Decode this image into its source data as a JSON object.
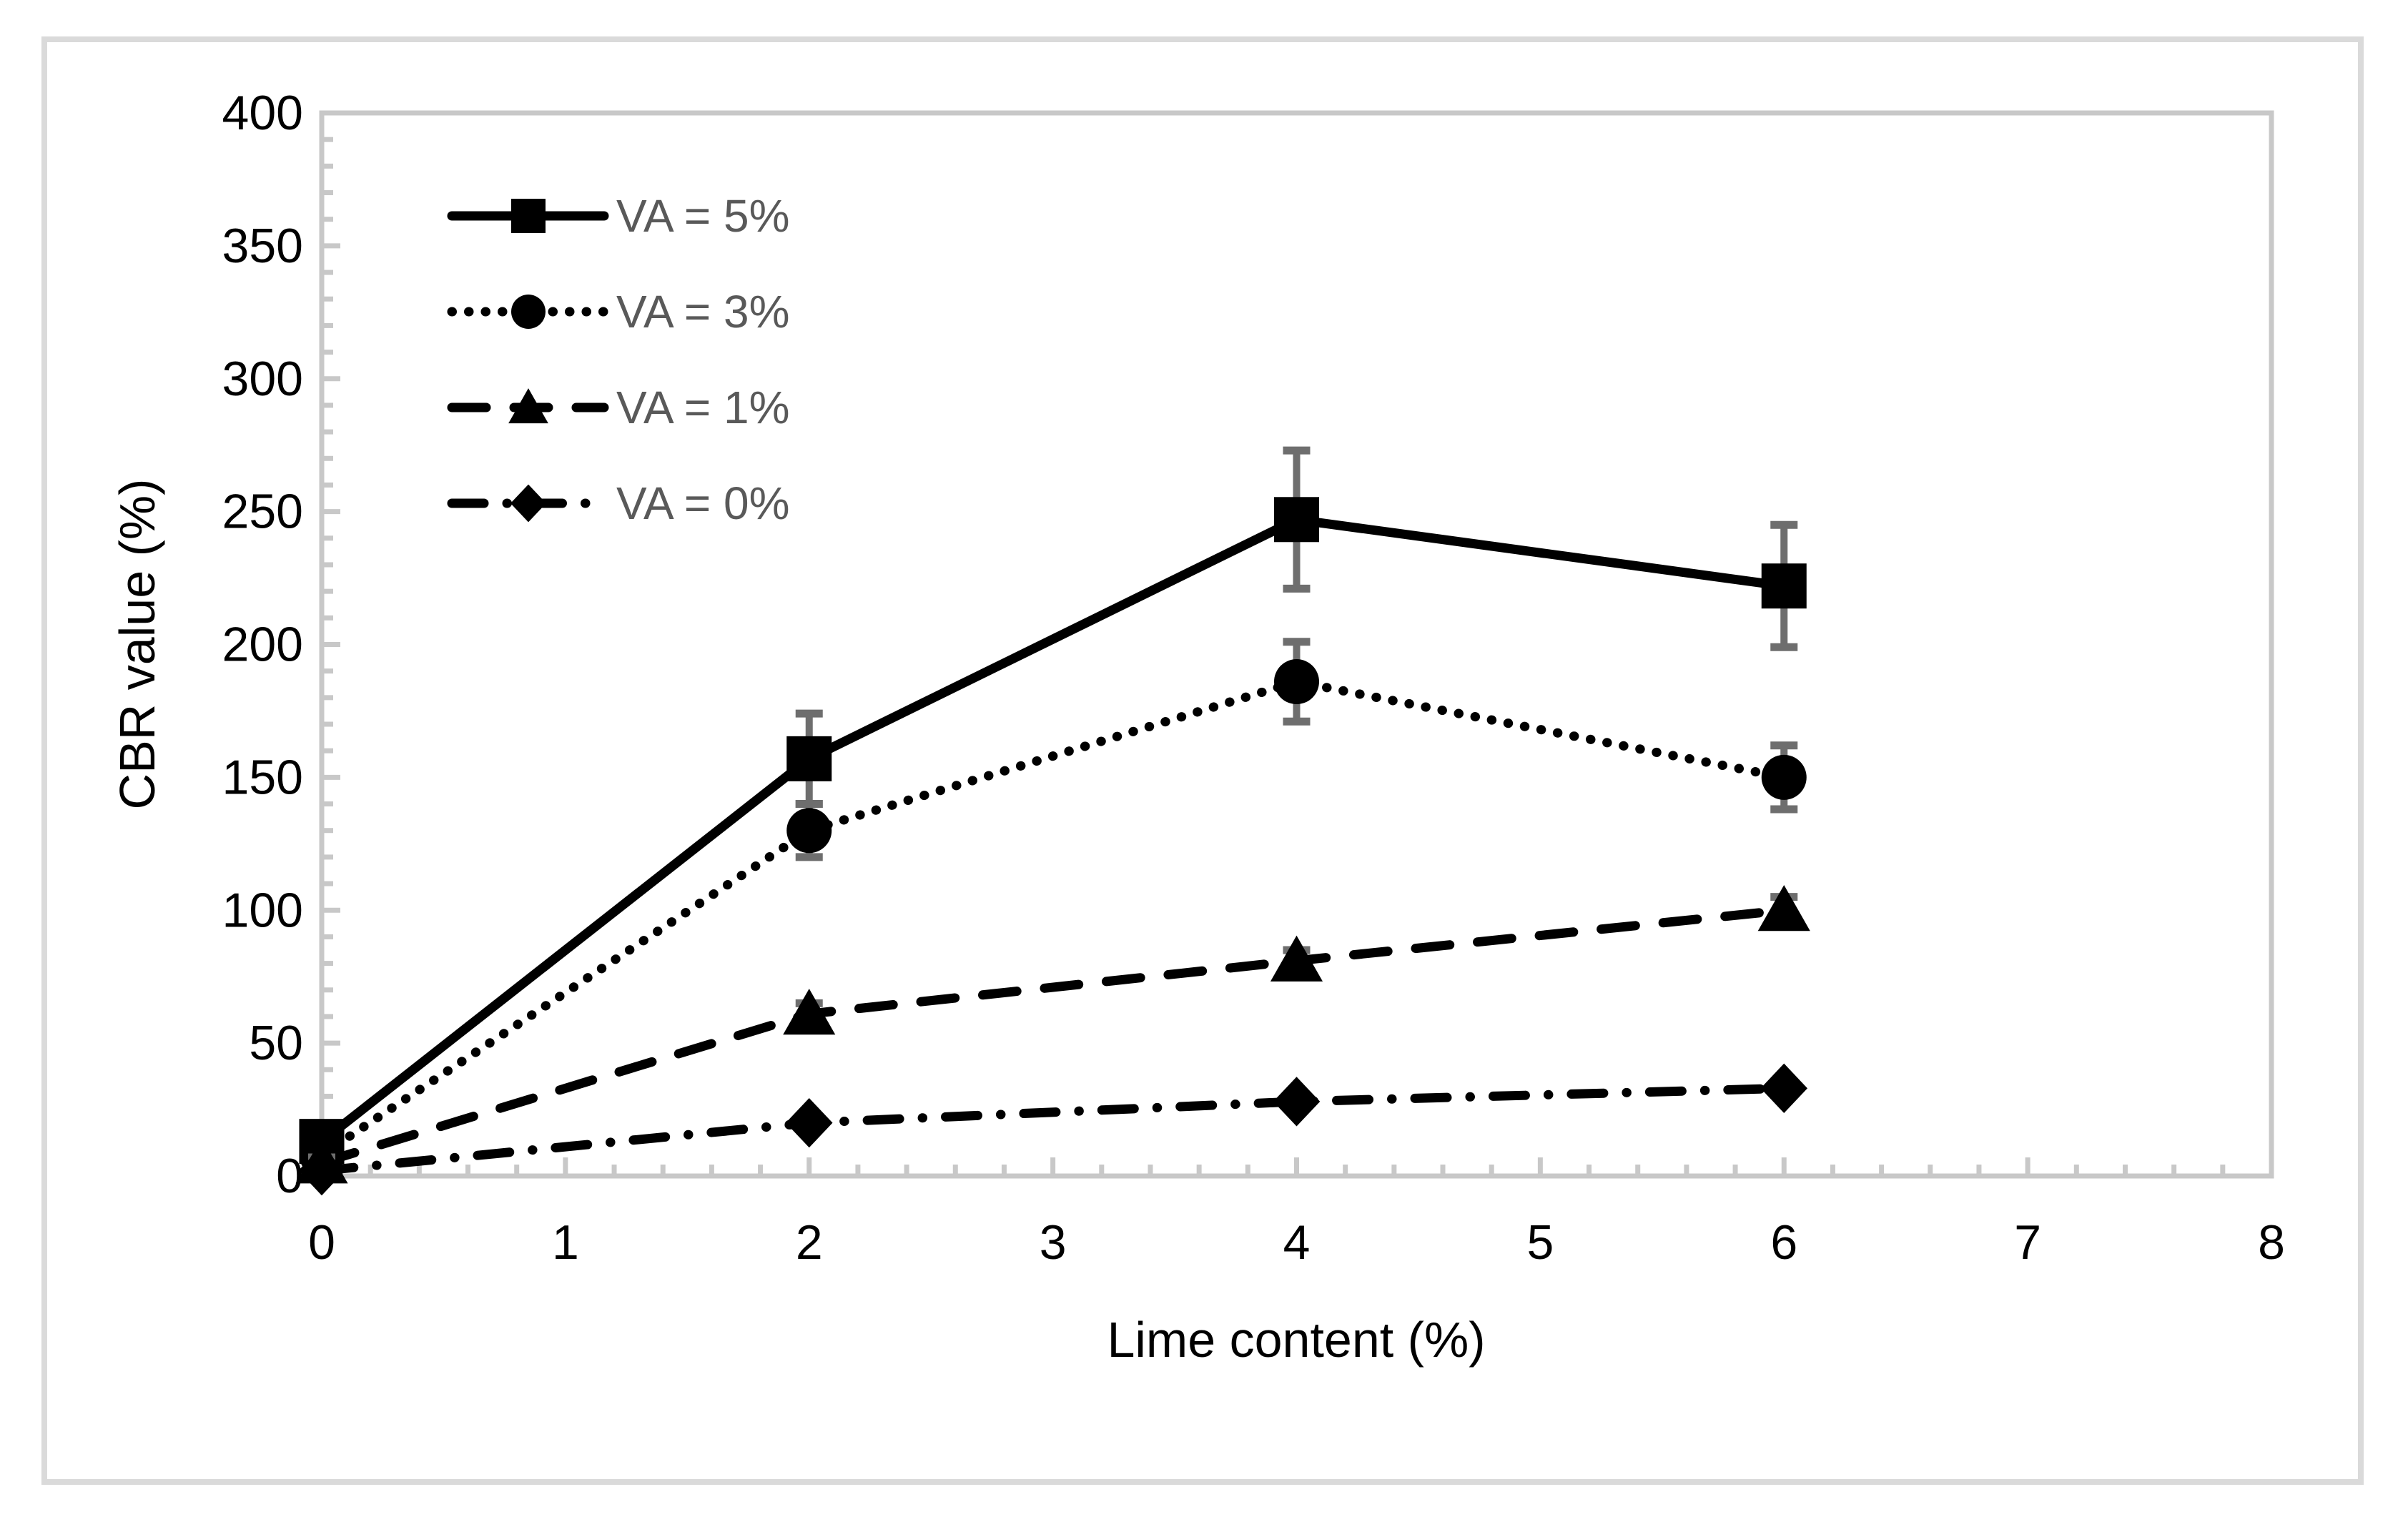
{
  "figure": {
    "background": "#ffffff",
    "outer_border_color": "#dadada"
  },
  "chart_data": {
    "type": "line",
    "title": "",
    "xlabel": "Lime content (%)",
    "ylabel": "CBR value (%)",
    "xlim": [
      0,
      8
    ],
    "ylim": [
      0,
      400
    ],
    "x_ticks": [
      "0",
      "1",
      "2",
      "3",
      "4",
      "5",
      "6",
      "7",
      "8"
    ],
    "y_ticks": [
      "0",
      "50",
      "100",
      "150",
      "200",
      "250",
      "300",
      "350",
      "400"
    ],
    "x_tick_values": [
      0,
      1,
      2,
      3,
      4,
      5,
      6,
      7,
      8
    ],
    "y_tick_values": [
      0,
      50,
      100,
      150,
      200,
      250,
      300,
      350,
      400
    ],
    "x_minor_step": 0.2,
    "y_minor_step": 10,
    "grid": false,
    "legend_position": "top-left-inside",
    "x": [
      0,
      2,
      4,
      6
    ],
    "series": [
      {
        "name": "VA = 5%",
        "marker": "square",
        "line_style": "solid",
        "values": [
          13,
          157,
          247,
          222
        ],
        "error": [
          6,
          17,
          26,
          23
        ]
      },
      {
        "name": "VA = 3%",
        "marker": "circle",
        "line_style": "dotted",
        "values": [
          8,
          130,
          186,
          150
        ],
        "error": [
          4,
          10,
          15,
          12
        ]
      },
      {
        "name": "VA = 1%",
        "marker": "triangle",
        "line_style": "dashed",
        "values": [
          5,
          61,
          81,
          100
        ],
        "error": [
          2,
          4,
          4,
          5
        ]
      },
      {
        "name": "VA = 0%",
        "marker": "diamond",
        "line_style": "dashdot",
        "values": [
          2,
          20,
          28,
          33
        ],
        "error": [
          2,
          2,
          2,
          2
        ]
      }
    ],
    "colors": {
      "series": "#000000",
      "error_bar": "#6e6e6e",
      "axis": "#c8c8c8",
      "tick_label": "#000000",
      "axis_title": "#000000",
      "legend_text": "#595959"
    }
  }
}
